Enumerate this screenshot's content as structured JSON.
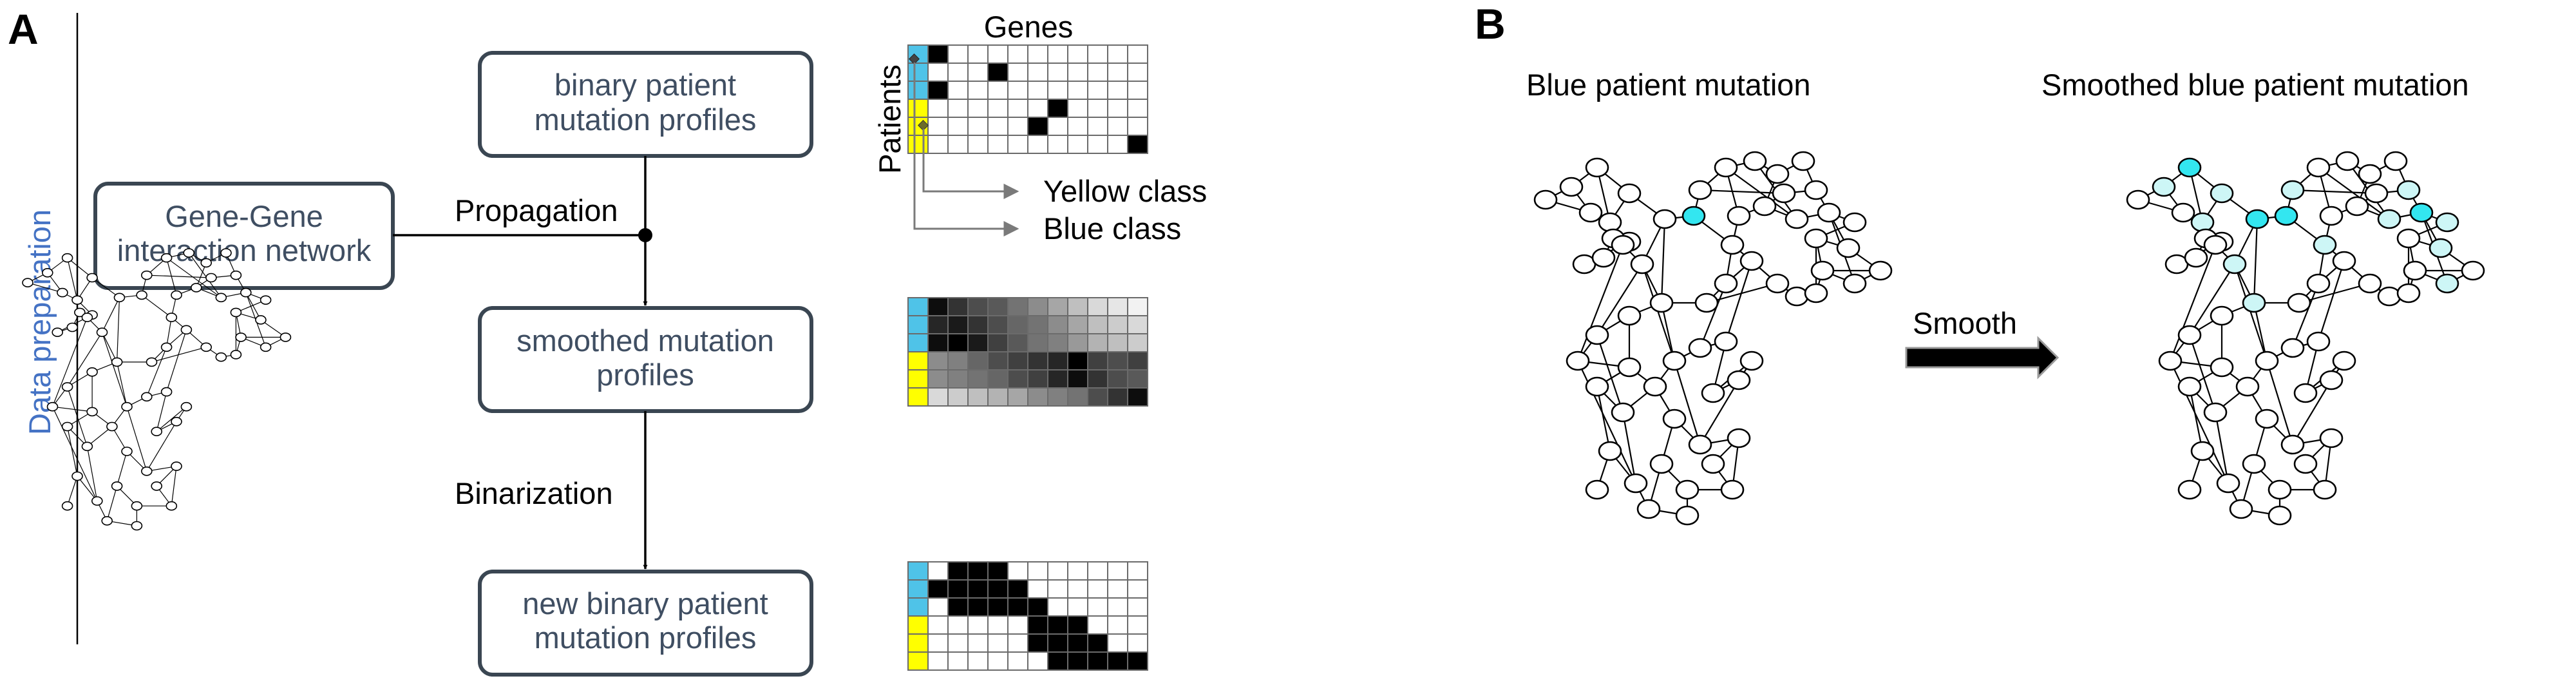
{
  "panel_a": {
    "label": "A",
    "side_label": "Data preparation",
    "boxes": {
      "binary": [
        "binary patient",
        "mutation profiles"
      ],
      "network": [
        "Gene-Gene",
        "interaction network"
      ],
      "smoothed": [
        "smoothed mutation",
        "profiles"
      ],
      "new_binary": [
        "new binary patient",
        "mutation profiles"
      ]
    },
    "propagation_label": "Propagation",
    "binarization_label": "Binarization",
    "genes_label": "Genes",
    "patients_label": "Patients",
    "yellow_class_label": "Yellow class",
    "blue_class_label": "Blue class",
    "matrix_binary": [
      [
        1,
        0,
        0,
        0,
        0,
        0,
        0,
        0,
        0,
        0,
        0
      ],
      [
        0,
        0,
        0,
        1,
        0,
        0,
        0,
        0,
        0,
        0,
        0
      ],
      [
        1,
        0,
        0,
        0,
        0,
        0,
        0,
        0,
        0,
        0,
        0
      ],
      [
        0,
        0,
        0,
        0,
        0,
        0,
        1,
        0,
        0,
        0,
        0
      ],
      [
        0,
        0,
        0,
        0,
        0,
        1,
        0,
        0,
        0,
        0,
        0
      ],
      [
        0,
        0,
        0,
        0,
        0,
        0,
        0,
        0,
        0,
        0,
        1
      ]
    ],
    "matrix_smoothed": [
      [
        0.05,
        0.2,
        0.3,
        0.35,
        0.45,
        0.55,
        0.65,
        0.75,
        0.85,
        0.9,
        0.95
      ],
      [
        0.15,
        0.1,
        0.2,
        0.3,
        0.4,
        0.45,
        0.55,
        0.65,
        0.75,
        0.8,
        0.85
      ],
      [
        0.05,
        0.0,
        0.1,
        0.25,
        0.35,
        0.45,
        0.5,
        0.6,
        0.7,
        0.75,
        0.8
      ],
      [
        0.55,
        0.5,
        0.4,
        0.3,
        0.25,
        0.2,
        0.15,
        0.0,
        0.25,
        0.3,
        0.25
      ],
      [
        0.55,
        0.5,
        0.45,
        0.4,
        0.3,
        0.25,
        0.15,
        0.05,
        0.2,
        0.3,
        0.35
      ],
      [
        0.85,
        0.8,
        0.75,
        0.7,
        0.65,
        0.55,
        0.5,
        0.45,
        0.3,
        0.2,
        0.05
      ]
    ],
    "matrix_new_binary": [
      [
        0,
        1,
        1,
        1,
        0,
        0,
        0,
        0,
        0,
        0,
        0
      ],
      [
        1,
        1,
        1,
        1,
        1,
        0,
        0,
        0,
        0,
        0,
        0
      ],
      [
        0,
        1,
        1,
        1,
        1,
        1,
        0,
        0,
        0,
        0,
        0
      ],
      [
        0,
        0,
        0,
        0,
        0,
        1,
        1,
        1,
        0,
        0,
        0
      ],
      [
        0,
        0,
        0,
        0,
        0,
        1,
        1,
        1,
        1,
        0,
        0
      ],
      [
        0,
        0,
        0,
        0,
        0,
        0,
        1,
        1,
        1,
        1,
        1
      ]
    ],
    "class_colors": {
      "blue": "#4fc3e8",
      "yellow": "#ffff00"
    },
    "patient_classes": [
      "blue",
      "blue",
      "blue",
      "yellow",
      "yellow",
      "yellow"
    ]
  },
  "panel_b": {
    "label": "B",
    "left_title": "Blue patient mutation",
    "right_title": "Smoothed blue patient mutation",
    "smooth_label": "Smooth",
    "colors": {
      "mutated": "#33e6f0",
      "smoothed": "#cdf6f6",
      "default": "#ffffff"
    },
    "mutated_nodes_left": [
      13
    ],
    "mutated_nodes_right": [
      3,
      13,
      12,
      24
    ]
  }
}
